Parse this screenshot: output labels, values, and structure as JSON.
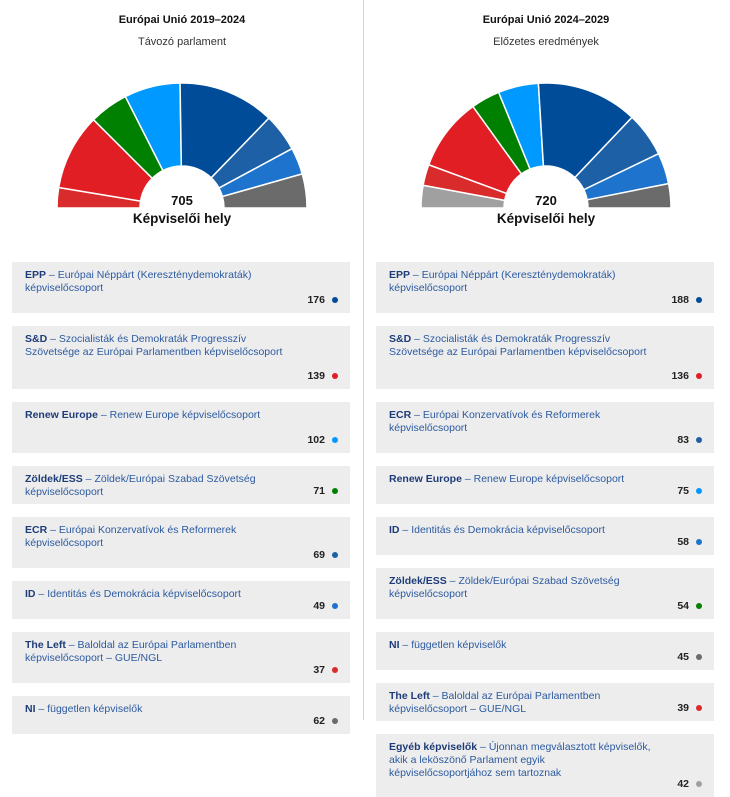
{
  "chart_data": [
    {
      "type": "pie",
      "title": "Európai Unió 2019–2024",
      "subtitle": "Távozó parlament",
      "total": "705",
      "total_label": "Képviselői hely",
      "legend": [
        {
          "abbr": "EPP",
          "sep": " – ",
          "desc": "Európai Néppárt (Kereszténydemokraták) képviselőcsoport",
          "value": 176,
          "color": "#004c99"
        },
        {
          "abbr": "S&D",
          "sep": " – ",
          "desc": "Szocialisták és Demokraták Progresszív Szövetsége az Európai Parlamentben képviselőcsoport",
          "value": 139,
          "color": "#e01e24"
        },
        {
          "abbr": "Renew Europe",
          "sep": " – ",
          "desc": "Renew Europe képviselőcsoport",
          "value": 102,
          "color": "#0099ff"
        },
        {
          "abbr": "Zöldek/ESS",
          "sep": " – ",
          "desc": "Zöldek/Európai Szabad Szövetség képviselőcsoport",
          "value": 71,
          "color": "#008000"
        },
        {
          "abbr": "ECR",
          "sep": " – ",
          "desc": "Európai Konzervatívok és Reformerek képviselőcsoport",
          "value": 69,
          "color": "#1e60a6"
        },
        {
          "abbr": "ID",
          "sep": " – ",
          "desc": "Identitás és Demokrácia képviselőcsoport",
          "value": 49,
          "color": "#1e74cc"
        },
        {
          "abbr": "The Left",
          "sep": " – ",
          "desc": "Baloldal az Európai Parlamentben képviselőcsoport – GUE/NGL",
          "value": 37,
          "color": "#d92b2b"
        },
        {
          "abbr": "NI",
          "sep": " – ",
          "desc": "független képviselők",
          "value": 62,
          "color": "#6b6b6b"
        }
      ],
      "hemicycle_order": [
        "The Left",
        "S&D",
        "Zöldek/ESS",
        "Renew Europe",
        "EPP",
        "ECR",
        "ID",
        "NI"
      ]
    },
    {
      "type": "pie",
      "title": "Európai Unió 2024–2029",
      "subtitle": "Előzetes eredmények",
      "total": "720",
      "total_label": "Képviselői hely",
      "legend": [
        {
          "abbr": "EPP",
          "sep": " – ",
          "desc": "Európai Néppárt (Kereszténydemokraták) képviselőcsoport",
          "value": 188,
          "color": "#004c99"
        },
        {
          "abbr": "S&D",
          "sep": " – ",
          "desc": "Szocialisták és Demokraták Progresszív Szövetsége az Európai Parlamentben képviselőcsoport",
          "value": 136,
          "color": "#e01e24"
        },
        {
          "abbr": "ECR",
          "sep": " – ",
          "desc": "Európai Konzervatívok és Reformerek képviselőcsoport",
          "value": 83,
          "color": "#1e60a6"
        },
        {
          "abbr": "Renew Europe",
          "sep": " – ",
          "desc": "Renew Europe képviselőcsoport",
          "value": 75,
          "color": "#0099ff"
        },
        {
          "abbr": "ID",
          "sep": " – ",
          "desc": "Identitás és Demokrácia képviselőcsoport",
          "value": 58,
          "color": "#1e74cc"
        },
        {
          "abbr": "Zöldek/ESS",
          "sep": " – ",
          "desc": "Zöldek/Európai Szabad Szövetség képviselőcsoport",
          "value": 54,
          "color": "#008000"
        },
        {
          "abbr": "NI",
          "sep": " – ",
          "desc": "független képviselők",
          "value": 45,
          "color": "#6b6b6b"
        },
        {
          "abbr": "The Left",
          "sep": " – ",
          "desc": "Baloldal az Európai Parlamentben képviselőcsoport – GUE/NGL",
          "value": 39,
          "color": "#d92b2b"
        },
        {
          "abbr": "Egyéb képviselők",
          "sep": " – ",
          "desc": "Újonnan megválasztott képviselők, akik a leköszönő Parlament egyik képviselőcsoportjához sem tartoznak",
          "value": 42,
          "color": "#a0a0a0"
        }
      ],
      "hemicycle_order": [
        "Egyéb képviselők",
        "The Left",
        "S&D",
        "Zöldek/ESS",
        "Renew Europe",
        "EPP",
        "ECR",
        "ID",
        "NI"
      ]
    }
  ]
}
